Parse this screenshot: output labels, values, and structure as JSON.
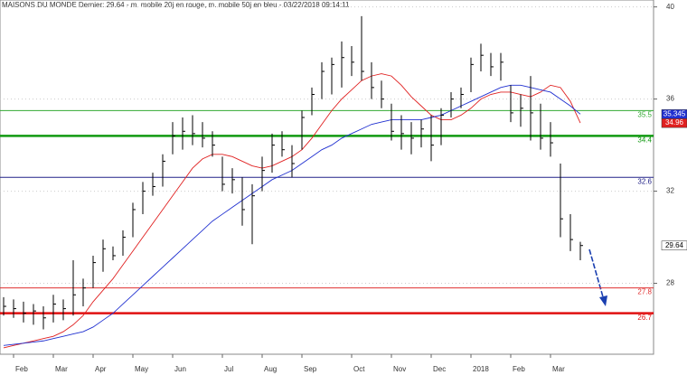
{
  "chart_data": {
    "type": "ohlc",
    "title": "MAISONS DU MONDE Dernier: 29.64 - m. mobile 20j en rouge, m. mobile 50j en bleu - 03/22/2018 09:14:11",
    "categories": [
      null,
      "Feb",
      null,
      null,
      null,
      "Mar",
      null,
      null,
      null,
      "Apr",
      null,
      null,
      null,
      "May",
      null,
      null,
      null,
      "Jun",
      null,
      null,
      null,
      null,
      "Jul",
      null,
      null,
      null,
      "Aug",
      null,
      null,
      null,
      "Sep",
      null,
      null,
      null,
      null,
      "Oct",
      null,
      null,
      null,
      "Nov",
      null,
      null,
      null,
      "Dec",
      null,
      null,
      null,
      "2018",
      null,
      null,
      null,
      "Feb",
      null,
      null,
      null,
      "Mar",
      null,
      null,
      null
    ],
    "low": [
      26.6,
      26.5,
      26.3,
      26.2,
      26.0,
      26.3,
      26.4,
      26.6,
      27.0,
      27.8,
      28.5,
      29.0,
      29.2,
      30.0,
      31.0,
      31.8,
      32.2,
      33.6,
      33.8,
      34.0,
      33.9,
      33.5,
      32.0,
      31.9,
      30.5,
      29.7,
      32.0,
      32.8,
      33.5,
      32.6,
      33.8,
      35.3,
      36.0,
      36.2,
      36.5,
      37.0,
      36.8,
      36.0,
      35.6,
      34.2,
      33.8,
      33.6,
      33.9,
      33.3,
      34.0,
      35.2,
      35.6,
      36.3,
      37.2,
      37.0,
      36.8,
      35.0,
      34.8,
      34.2,
      33.8,
      33.5,
      30.0,
      29.4,
      29.0
    ],
    "high": [
      27.4,
      27.3,
      27.2,
      27.1,
      27.0,
      27.5,
      27.3,
      29.0,
      28.2,
      29.2,
      29.9,
      29.6,
      30.3,
      31.5,
      32.4,
      32.8,
      33.6,
      35.0,
      35.2,
      35.3,
      35.0,
      34.6,
      33.5,
      33.0,
      32.6,
      32.3,
      33.5,
      34.5,
      34.6,
      34.0,
      35.5,
      36.5,
      37.6,
      37.8,
      38.5,
      38.3,
      39.6,
      37.6,
      36.8,
      35.8,
      35.3,
      35.0,
      35.1,
      35.3,
      35.6,
      36.3,
      36.5,
      37.8,
      38.4,
      38.0,
      38.0,
      36.6,
      36.2,
      37.0,
      35.8,
      35.0,
      33.2,
      31.0,
      29.8
    ],
    "close": [
      27.0,
      26.9,
      26.7,
      26.8,
      26.5,
      27.1,
      26.9,
      27.5,
      27.8,
      28.9,
      29.5,
      29.2,
      30.0,
      31.2,
      32.0,
      32.2,
      33.3,
      34.4,
      34.6,
      34.5,
      34.3,
      34.0,
      32.3,
      32.5,
      31.2,
      31.8,
      32.9,
      34.0,
      33.8,
      33.2,
      35.2,
      36.2,
      37.2,
      37.5,
      37.8,
      37.6,
      37.2,
      36.5,
      36.0,
      34.6,
      34.5,
      34.3,
      34.7,
      34.0,
      35.3,
      36.0,
      36.2,
      37.5,
      37.9,
      37.4,
      37.6,
      35.4,
      35.6,
      35.4,
      34.3,
      34.1,
      30.8,
      29.9,
      29.64
    ],
    "color": "#000000",
    "overlays": [
      {
        "color": "#e02020",
        "values": [
          25.2,
          25.3,
          25.4,
          25.5,
          25.6,
          25.7,
          25.9,
          26.2,
          26.6,
          27.2,
          27.7,
          28.2,
          28.8,
          29.4,
          30.0,
          30.6,
          31.2,
          31.8,
          32.4,
          33.0,
          33.4,
          33.6,
          33.6,
          33.5,
          33.3,
          33.1,
          33.0,
          33.1,
          33.3,
          33.5,
          33.8,
          34.3,
          34.9,
          35.5,
          36.0,
          36.4,
          36.8,
          37.0,
          37.1,
          37.0,
          36.6,
          36.1,
          35.7,
          35.3,
          35.1,
          35.1,
          35.3,
          35.6,
          36.0,
          36.2,
          36.3,
          36.3,
          36.2,
          36.1,
          36.3,
          36.6,
          36.5,
          35.9,
          34.96
        ]
      },
      {
        "color": "#2030d0",
        "values": [
          25.3,
          25.35,
          25.4,
          25.45,
          25.5,
          25.6,
          25.7,
          25.8,
          25.9,
          26.1,
          26.4,
          26.7,
          27.1,
          27.5,
          27.9,
          28.3,
          28.7,
          29.1,
          29.5,
          29.9,
          30.3,
          30.7,
          31.0,
          31.3,
          31.6,
          31.9,
          32.2,
          32.5,
          32.7,
          32.9,
          33.2,
          33.5,
          33.8,
          34.0,
          34.3,
          34.5,
          34.7,
          34.9,
          35.0,
          35.1,
          35.1,
          35.1,
          35.1,
          35.2,
          35.3,
          35.5,
          35.7,
          35.9,
          36.1,
          36.3,
          36.5,
          36.6,
          36.6,
          36.5,
          36.4,
          36.3,
          36.0,
          35.7,
          35.345
        ]
      }
    ],
    "levels": [
      {
        "value": 35.5,
        "color": "#33aa33",
        "width": 1
      },
      {
        "value": 34.4,
        "color": "#119911",
        "width": 2.5
      },
      {
        "value": 32.6,
        "color": "#222288",
        "width": 1
      },
      {
        "value": 27.8,
        "color": "#e03030",
        "width": 1
      },
      {
        "value": 26.7,
        "color": "#e01010",
        "width": 2.5
      }
    ],
    "ylim": [
      25.0,
      40.3
    ],
    "yticks": [
      28,
      32,
      36,
      40
    ],
    "grid": true
  }
}
